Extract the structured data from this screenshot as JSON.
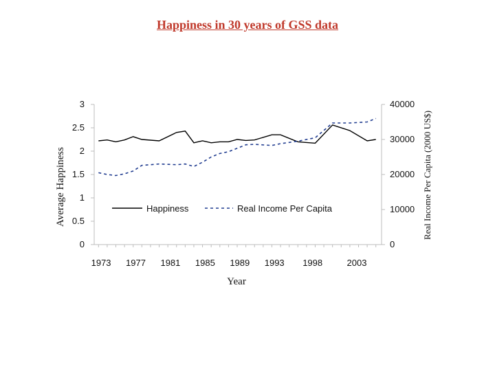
{
  "page": {
    "title": "Happiness in 30 years of GSS data"
  },
  "chart_data": {
    "type": "line",
    "title": "",
    "xlabel": "Year",
    "ylabel_left": "Average Happiness",
    "ylabel_right": "Real Income Per Capita (2000 US$)",
    "x_ticks": [
      "1973",
      "1977",
      "1981",
      "1985",
      "1989",
      "1993",
      "1998",
      "2003"
    ],
    "ylim_left": [
      0,
      3
    ],
    "yticks_left": [
      "0",
      "0.5",
      "1",
      "1.5",
      "2",
      "2.5",
      "3"
    ],
    "ylim_right": [
      0,
      40000
    ],
    "yticks_right": [
      "0",
      "10000",
      "20000",
      "30000",
      "40000"
    ],
    "grid": false,
    "legend_position": "lower-left inside plot",
    "x": [
      1973,
      1974,
      1975,
      1976,
      1977,
      1978,
      1980,
      1982,
      1983,
      1984,
      1985,
      1986,
      1987,
      1988,
      1989,
      1990,
      1991,
      1993,
      1994,
      1996,
      1998,
      2000,
      2002,
      2004,
      2005
    ],
    "series": [
      {
        "name": "Happiness",
        "axis": "left",
        "style": "solid",
        "color": "#000000",
        "values": [
          2.22,
          2.24,
          2.2,
          2.24,
          2.31,
          2.25,
          2.22,
          2.4,
          2.43,
          2.18,
          2.22,
          2.18,
          2.2,
          2.2,
          2.25,
          2.23,
          2.24,
          2.35,
          2.35,
          2.2,
          2.17,
          2.56,
          2.44,
          2.22,
          2.25
        ]
      },
      {
        "name": "Real Income Per Capita",
        "axis": "right",
        "style": "dashed",
        "color": "#1f3b8f",
        "values": [
          20500,
          20000,
          19700,
          20200,
          21000,
          22600,
          23000,
          22800,
          23000,
          22300,
          23500,
          25000,
          26000,
          26500,
          27500,
          28500,
          28600,
          28300,
          28800,
          29500,
          30500,
          34700,
          34700,
          35000,
          36000
        ]
      }
    ]
  }
}
